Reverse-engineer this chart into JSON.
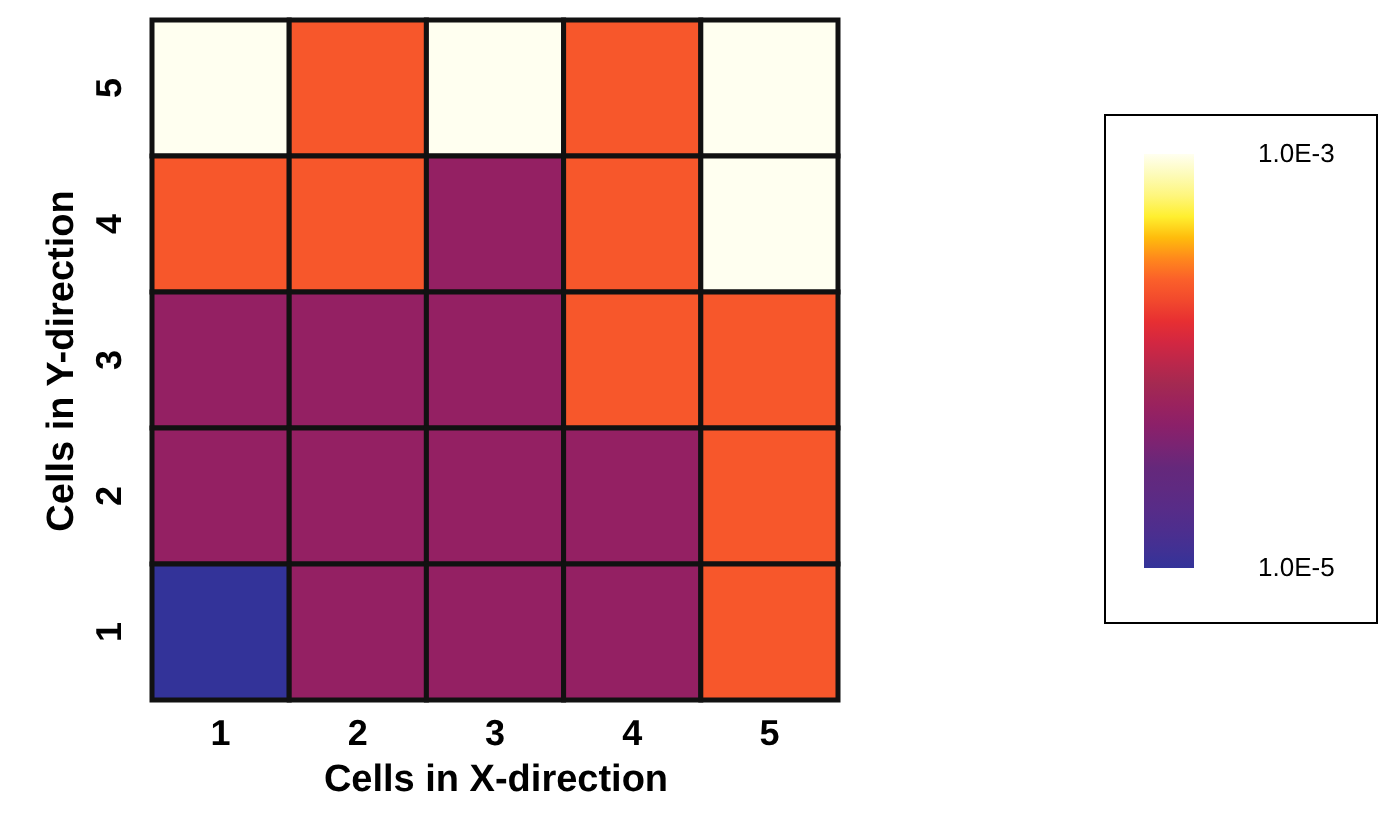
{
  "chart_data": {
    "type": "heatmap",
    "xlabel": "Cells in X-direction",
    "ylabel": "Cells in Y-direction",
    "categories": [
      "1",
      "2",
      "3",
      "4",
      "5"
    ],
    "y_categories": [
      "5",
      "4",
      "3",
      "2",
      "1"
    ],
    "cells": [
      [
        0.001,
        0.00068,
        0.001,
        0.00068,
        0.001
      ],
      [
        0.00068,
        0.00068,
        0.00038,
        0.00068,
        0.001
      ],
      [
        0.00038,
        0.00038,
        0.00038,
        0.00068,
        0.00068
      ],
      [
        0.00038,
        0.00038,
        0.00038,
        0.00038,
        0.00068
      ],
      [
        1e-05,
        0.00038,
        0.00038,
        0.00038,
        0.00068
      ]
    ],
    "clim": [
      1e-05,
      0.001
    ],
    "cticks": [
      {
        "value": 0.001,
        "label": "1.0E-3"
      },
      {
        "value": 1e-05,
        "label": "1.0E-5"
      }
    ]
  }
}
